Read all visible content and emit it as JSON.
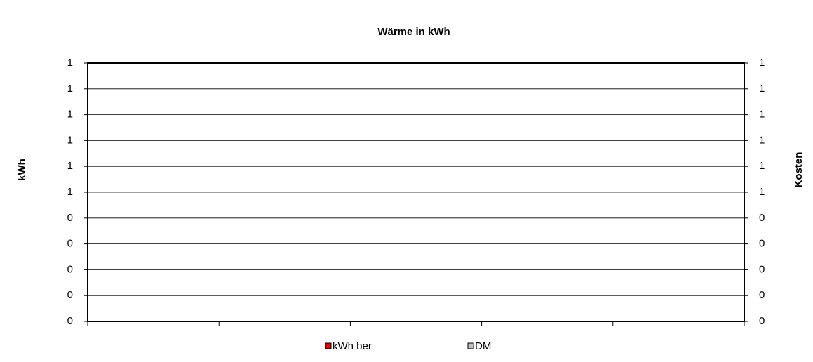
{
  "chart_data": {
    "type": "bar",
    "title": "Wärme in kWh",
    "y_label": "kWh",
    "y2_label": "Kosten",
    "categories": [
      null,
      null,
      null,
      null,
      null
    ],
    "series": [
      {
        "name": "kWh ber",
        "color": "#e00000",
        "values": [
          null,
          null,
          null,
          null,
          null
        ]
      },
      {
        "name": "DM",
        "color": "#c0c0c0",
        "axis": "y2",
        "values": [
          null,
          null,
          null,
          null,
          null
        ]
      }
    ],
    "ylim": [
      0,
      1
    ],
    "yticks": [
      0,
      {
        "value": 0.1,
        "label": "0"
      },
      {
        "value": 0.2,
        "label": "0"
      },
      {
        "value": 0.3,
        "label": "0"
      },
      {
        "value": 0.4,
        "label": "0"
      },
      {
        "value": 0.5,
        "label": "1"
      },
      {
        "value": 0.6,
        "label": "1"
      },
      {
        "value": 0.7,
        "label": "1"
      },
      {
        "value": 0.8,
        "label": "1"
      },
      {
        "value": 0.9,
        "label": "1"
      },
      1
    ],
    "y2lim": [
      0,
      1
    ],
    "y2ticks": [
      0,
      {
        "value": 0.1,
        "label": "0"
      },
      {
        "value": 0.2,
        "label": "0"
      },
      {
        "value": 0.3,
        "label": "0"
      },
      {
        "value": 0.4,
        "label": "0"
      },
      {
        "value": 0.5,
        "label": "1"
      },
      {
        "value": 0.6,
        "label": "1"
      },
      {
        "value": 0.7,
        "label": "1"
      },
      {
        "value": 0.8,
        "label": "1"
      },
      {
        "value": 0.9,
        "label": "1"
      },
      1
    ],
    "grid": true
  }
}
